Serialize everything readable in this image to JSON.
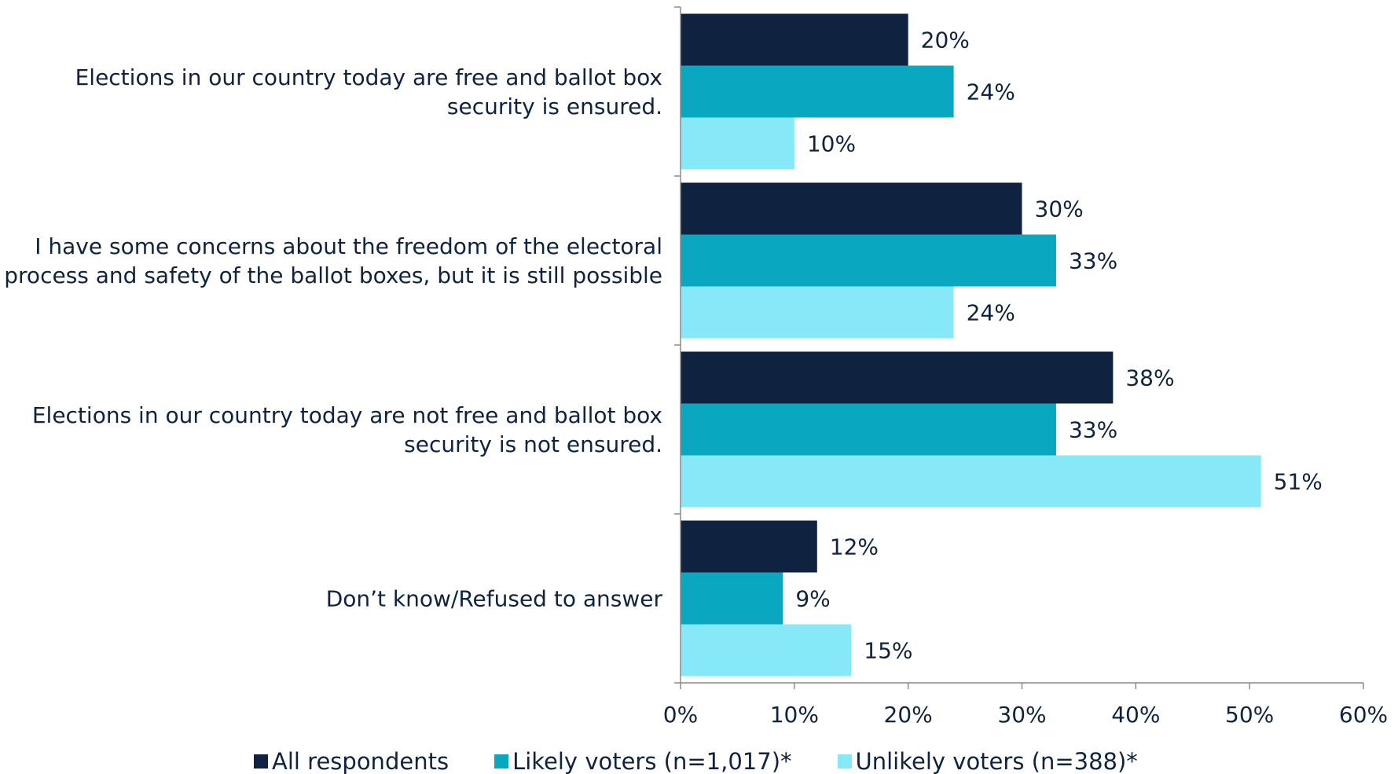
{
  "chart_data": {
    "type": "bar",
    "orientation": "horizontal",
    "categories": [
      "Elections in our country today are free and ballot box security is ensured.",
      "I have some concerns about the freedom of the electoral process and safety of the ballot boxes, but it is still possible",
      "Elections in our country today are not free and ballot box security is not ensured.",
      "Don’t know/Refused to answer"
    ],
    "series": [
      {
        "name": "All respondents",
        "color": "#0f2340",
        "values": [
          20,
          30,
          38,
          12
        ]
      },
      {
        "name": "Likely voters (n=1,017)*",
        "color": "#0aa8c0",
        "values": [
          24,
          33,
          33,
          9
        ]
      },
      {
        "name": "Unlikely voters (n=388)*",
        "color": "#87e9f7",
        "values": [
          10,
          24,
          51,
          15
        ]
      }
    ],
    "value_suffix": "%",
    "xlim": [
      0,
      60
    ],
    "xticks": [
      0,
      10,
      20,
      30,
      40,
      50,
      60
    ],
    "xtick_labels": [
      "0%",
      "10%",
      "20%",
      "30%",
      "40%",
      "50%",
      "60%"
    ],
    "grid": false,
    "legend_position": "bottom",
    "title": "",
    "xlabel": "",
    "ylabel": ""
  }
}
